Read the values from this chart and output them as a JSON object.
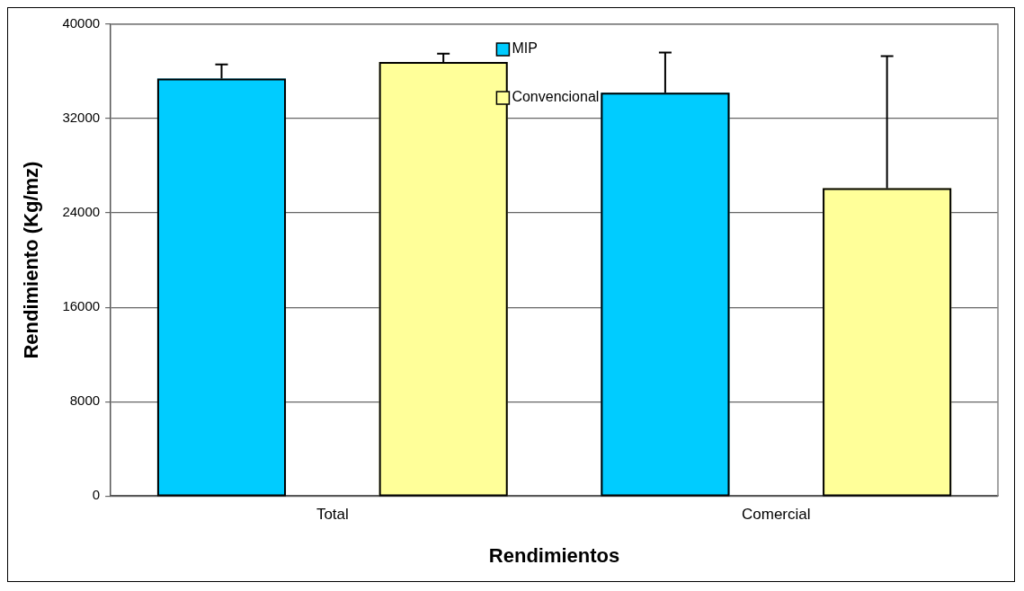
{
  "chart_data": {
    "type": "bar",
    "xlabel": "Rendimientos",
    "ylabel": "Rendimiento (Kg/mz)",
    "categories": [
      "Total",
      "Comercial"
    ],
    "series": [
      {
        "name": "MIP",
        "color": "#00ccff",
        "values": [
          35400,
          34200
        ],
        "errors": [
          [
            35400,
            36600
          ],
          [
            34200,
            37600
          ]
        ]
      },
      {
        "name": "Convencional",
        "color": "#ffff99",
        "values": [
          36800,
          26100
        ],
        "errors": [
          [
            36800,
            37500
          ],
          [
            26100,
            37300
          ]
        ]
      }
    ],
    "ylim": [
      0,
      40000
    ],
    "yticks": [
      0,
      8000,
      16000,
      24000,
      32000,
      40000
    ],
    "grid": "y",
    "legend": "top"
  }
}
